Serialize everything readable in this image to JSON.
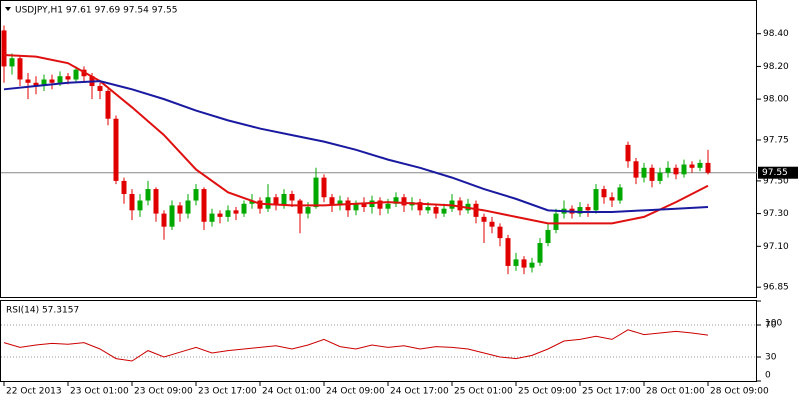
{
  "chart_data": [
    {
      "type": "candlestick",
      "title": "USDJPY,H1  97.61 97.69 97.54 97.55",
      "categories": [
        "22 Oct 2013",
        null,
        null,
        null,
        null,
        null,
        null,
        null,
        "23 Oct 01:00",
        null,
        null,
        null,
        null,
        null,
        null,
        null,
        "23 Oct 09:00",
        null,
        null,
        null,
        null,
        null,
        null,
        null,
        "23 Oct 17:00",
        null,
        null,
        null,
        null,
        null,
        null,
        null,
        "24 Oct 01:00",
        null,
        null,
        null,
        null,
        null,
        null,
        null,
        "24 Oct 09:00",
        null,
        null,
        null,
        null,
        null,
        null,
        null,
        "24 Oct 17:00",
        null,
        null,
        null,
        null,
        null,
        null,
        null,
        "25 Oct 01:00",
        null,
        null,
        null,
        null,
        null,
        null,
        null,
        "25 Oct 09:00",
        null,
        null,
        null,
        null,
        null,
        null,
        null,
        "25 Oct 17:00",
        null,
        null,
        null,
        null,
        null,
        null,
        null,
        "28 Oct 01:00",
        null,
        null,
        null,
        null,
        null,
        null,
        null,
        "28 Oct 09:00"
      ],
      "open": [
        98.42,
        98.2,
        98.25,
        98.12,
        98.1,
        98.08,
        98.12,
        98.1,
        98.14,
        98.12,
        98.18,
        98.14,
        98.08,
        98.05,
        97.88,
        97.5,
        97.42,
        97.32,
        97.38,
        97.45,
        97.3,
        97.22,
        97.35,
        97.3,
        97.38,
        97.45,
        97.25,
        97.3,
        97.28,
        97.32,
        97.3,
        97.36,
        97.38,
        97.33,
        97.4,
        97.35,
        97.42,
        97.38,
        97.3,
        97.34,
        97.52,
        97.4,
        97.35,
        97.38,
        97.32,
        97.36,
        97.34,
        97.38,
        97.33,
        97.36,
        97.4,
        97.35,
        97.37,
        97.32,
        97.34,
        97.3,
        97.33,
        97.38,
        97.32,
        97.36,
        97.28,
        97.25,
        97.22,
        97.15,
        96.98,
        97.02,
        96.97,
        97.0,
        97.12,
        97.2,
        97.3,
        97.33,
        97.3,
        97.34,
        97.32,
        97.45,
        97.4,
        97.38,
        97.72,
        97.62,
        97.52,
        97.58,
        97.5,
        97.55,
        97.58,
        97.54,
        97.6,
        97.58,
        97.61
      ],
      "high": [
        98.45,
        98.28,
        98.27,
        98.16,
        98.14,
        98.15,
        98.15,
        98.17,
        98.16,
        98.2,
        98.2,
        98.16,
        98.1,
        98.06,
        97.9,
        97.52,
        97.45,
        97.42,
        97.5,
        97.46,
        97.32,
        97.38,
        97.37,
        97.42,
        97.48,
        97.46,
        97.33,
        97.32,
        97.35,
        97.34,
        97.38,
        97.42,
        97.4,
        97.48,
        97.42,
        97.45,
        97.44,
        97.39,
        97.37,
        97.58,
        97.54,
        97.42,
        97.41,
        97.4,
        97.38,
        97.4,
        97.41,
        97.4,
        97.39,
        97.43,
        97.42,
        97.4,
        97.39,
        97.37,
        97.36,
        97.36,
        97.42,
        97.4,
        97.39,
        97.38,
        97.3,
        97.28,
        97.24,
        97.17,
        97.06,
        97.04,
        97.03,
        97.15,
        97.24,
        97.33,
        97.38,
        97.35,
        97.37,
        97.36,
        97.48,
        97.47,
        97.43,
        97.48,
        97.74,
        97.64,
        97.61,
        97.6,
        97.58,
        97.62,
        97.6,
        97.63,
        97.62,
        97.63,
        97.69
      ],
      "low": [
        98.1,
        98.15,
        98.08,
        98.0,
        98.03,
        98.05,
        98.06,
        98.08,
        98.09,
        98.1,
        98.1,
        98.0,
        98.0,
        97.84,
        97.48,
        97.36,
        97.26,
        97.28,
        97.35,
        97.25,
        97.14,
        97.2,
        97.25,
        97.27,
        97.35,
        97.2,
        97.22,
        97.24,
        97.25,
        97.26,
        97.28,
        97.33,
        97.3,
        97.31,
        97.32,
        97.33,
        97.34,
        97.18,
        97.27,
        97.33,
        97.37,
        97.31,
        97.32,
        97.28,
        97.29,
        97.31,
        97.3,
        97.29,
        97.3,
        97.34,
        97.31,
        97.32,
        97.29,
        97.3,
        97.27,
        97.28,
        97.31,
        97.29,
        97.3,
        97.24,
        97.12,
        97.18,
        97.1,
        96.93,
        96.95,
        96.93,
        96.94,
        96.98,
        97.1,
        97.18,
        97.27,
        97.27,
        97.28,
        97.28,
        97.3,
        97.36,
        97.34,
        97.36,
        97.58,
        97.48,
        97.49,
        97.46,
        97.48,
        97.52,
        97.51,
        97.52,
        97.55,
        97.56,
        97.54
      ],
      "close": [
        98.2,
        98.25,
        98.12,
        98.1,
        98.08,
        98.12,
        98.1,
        98.14,
        98.12,
        98.18,
        98.14,
        98.08,
        98.05,
        97.88,
        97.5,
        97.42,
        97.32,
        97.38,
        97.45,
        97.3,
        97.22,
        97.35,
        97.3,
        97.38,
        97.45,
        97.25,
        97.3,
        97.28,
        97.32,
        97.3,
        97.36,
        97.38,
        97.33,
        97.4,
        97.35,
        97.42,
        97.38,
        97.3,
        97.34,
        97.52,
        97.4,
        97.35,
        97.38,
        97.32,
        97.36,
        97.34,
        97.38,
        97.33,
        97.36,
        97.4,
        97.35,
        97.37,
        97.32,
        97.34,
        97.3,
        97.33,
        97.38,
        97.32,
        97.36,
        97.28,
        97.25,
        97.22,
        97.15,
        96.98,
        97.02,
        96.97,
        97.0,
        97.12,
        97.2,
        97.3,
        97.33,
        97.3,
        97.34,
        97.32,
        97.45,
        97.4,
        97.38,
        97.46,
        97.62,
        97.52,
        97.58,
        97.5,
        97.55,
        97.58,
        97.54,
        97.6,
        97.58,
        97.61,
        97.55
      ],
      "up_color": "#00a800",
      "down_color": "#e00000",
      "series": [
        {
          "color": "#e01010",
          "x": [
            0,
            4,
            8,
            12,
            16,
            20,
            24,
            28,
            32,
            36,
            40,
            44,
            48,
            52,
            56,
            60,
            64,
            68,
            72,
            76,
            80,
            84,
            88
          ],
          "values": [
            98.27,
            98.26,
            98.22,
            98.11,
            97.95,
            97.78,
            97.57,
            97.43,
            97.36,
            97.35,
            97.35,
            97.36,
            97.37,
            97.36,
            97.35,
            97.32,
            97.28,
            97.24,
            97.24,
            97.24,
            97.28,
            97.37,
            97.47
          ]
        },
        {
          "color": "#1a1aa0",
          "x": [
            0,
            4,
            8,
            12,
            16,
            20,
            24,
            28,
            32,
            36,
            40,
            44,
            48,
            52,
            56,
            60,
            64,
            68,
            72,
            76,
            80,
            84,
            88
          ],
          "values": [
            98.06,
            98.08,
            98.1,
            98.11,
            98.06,
            98.0,
            97.93,
            97.87,
            97.82,
            97.78,
            97.74,
            97.69,
            97.63,
            97.58,
            97.52,
            97.45,
            97.39,
            97.32,
            97.31,
            97.31,
            97.32,
            97.33,
            97.34
          ]
        }
      ],
      "last_price": 97.55,
      "ylim": [
        96.79,
        98.6
      ],
      "yticks": [
        96.85,
        {
          "value": 97.1,
          "label": "97.10"
        },
        {
          "value": 97.3,
          "label": "97.30"
        },
        {
          "value": 97.5,
          "label": "97.50"
        },
        97.75,
        {
          "value": 98,
          "label": "98.00"
        },
        {
          "value": 98.2,
          "label": "98.20"
        },
        {
          "value": 98.4,
          "label": "98.40"
        }
      ]
    },
    {
      "type": "line",
      "title": "RSI(14) 57.3157",
      "color": "#cc0000",
      "x": [
        0,
        2,
        4,
        6,
        8,
        10,
        12,
        14,
        16,
        18,
        20,
        22,
        24,
        26,
        28,
        30,
        32,
        34,
        36,
        38,
        40,
        42,
        44,
        46,
        48,
        50,
        52,
        54,
        56,
        58,
        60,
        62,
        64,
        66,
        68,
        70,
        72,
        74,
        76,
        78,
        80,
        82,
        84,
        86,
        88
      ],
      "values": [
        48,
        42,
        45,
        47,
        46,
        48,
        40,
        28,
        25,
        38,
        30,
        36,
        42,
        35,
        38,
        40,
        42,
        44,
        40,
        45,
        52,
        43,
        40,
        45,
        42,
        44,
        40,
        43,
        42,
        40,
        35,
        30,
        28,
        32,
        40,
        50,
        52,
        56,
        52,
        64,
        58,
        60,
        62,
        60,
        57.3157
      ],
      "ylim": [
        0,
        100
      ],
      "yticks": [
        0,
        30,
        70,
        100
      ]
    }
  ]
}
